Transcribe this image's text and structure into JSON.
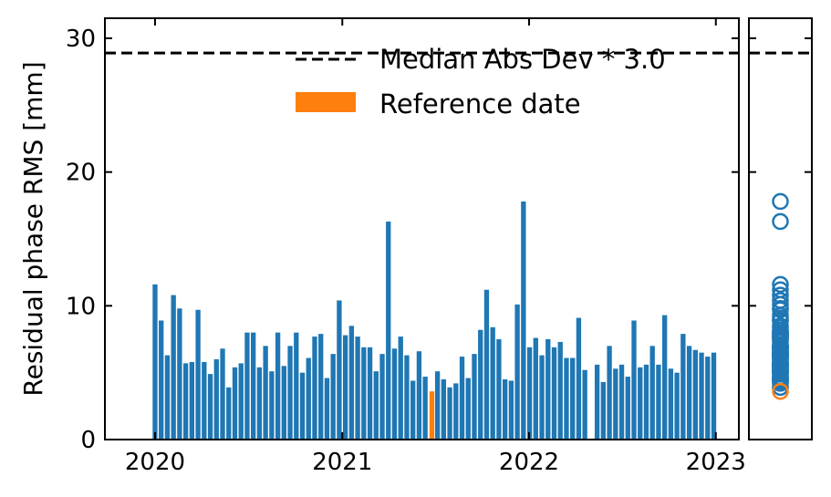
{
  "chart_data": [
    {
      "type": "bar",
      "ylabel": "Residual phase RMS [mm]",
      "ylim": [
        0,
        31.5
      ],
      "yticks": [
        0,
        10,
        20,
        30
      ],
      "xlim": [
        "2019-09-25",
        "2023-02-15"
      ],
      "xticks": [
        {
          "label": "2020",
          "date": "2020-01-01"
        },
        {
          "label": "2021",
          "date": "2021-01-01"
        },
        {
          "label": "2022",
          "date": "2022-01-01"
        },
        {
          "label": "2023",
          "date": "2023-01-01"
        }
      ],
      "threshold": 28.9,
      "reference_date": "2021-06-25",
      "reference_value": 3.6,
      "colors": {
        "bars": "#1f77b4",
        "reference": "#ff7f0e",
        "threshold": "#000000"
      },
      "legend": {
        "position": "top-right",
        "entries": [
          {
            "label": "Median Abs Dev * 3.0",
            "kind": "dashed-line"
          },
          {
            "label": "Reference date",
            "kind": "patch"
          }
        ]
      },
      "series": [
        {
          "dates": [
            "2020-01-01",
            "2020-01-13",
            "2020-01-25",
            "2020-02-06",
            "2020-02-18",
            "2020-03-01",
            "2020-03-13",
            "2020-03-25",
            "2020-04-06",
            "2020-04-18",
            "2020-04-30",
            "2020-05-12",
            "2020-05-24",
            "2020-06-05",
            "2020-06-17",
            "2020-06-29",
            "2020-07-11",
            "2020-07-23",
            "2020-08-04",
            "2020-08-16",
            "2020-08-28",
            "2020-09-09",
            "2020-09-21",
            "2020-10-03",
            "2020-10-15",
            "2020-10-27",
            "2020-11-08",
            "2020-11-20",
            "2020-12-02",
            "2020-12-14",
            "2020-12-26",
            "2021-01-07",
            "2021-01-19",
            "2021-01-31",
            "2021-02-12",
            "2021-02-24",
            "2021-03-08",
            "2021-03-20",
            "2021-04-01",
            "2021-04-13",
            "2021-04-25",
            "2021-05-07",
            "2021-05-19",
            "2021-05-31",
            "2021-06-12",
            "2021-07-06",
            "2021-07-18",
            "2021-07-30",
            "2021-08-11",
            "2021-08-23",
            "2021-09-04",
            "2021-09-16",
            "2021-09-28",
            "2021-10-10",
            "2021-10-22",
            "2021-11-03",
            "2021-11-15",
            "2021-11-27",
            "2021-12-09",
            "2021-12-21",
            "2022-01-02",
            "2022-01-14",
            "2022-01-26",
            "2022-02-07",
            "2022-02-19",
            "2022-03-03",
            "2022-03-15",
            "2022-03-27",
            "2022-04-08",
            "2022-04-20",
            "2022-05-14",
            "2022-05-26",
            "2022-06-07",
            "2022-06-19",
            "2022-07-01",
            "2022-07-13",
            "2022-07-25",
            "2022-08-06",
            "2022-08-18",
            "2022-08-30",
            "2022-09-11",
            "2022-09-23",
            "2022-10-05",
            "2022-10-17",
            "2022-10-29",
            "2022-11-10",
            "2022-11-22",
            "2022-12-04",
            "2022-12-16",
            "2022-12-28"
          ],
          "values": [
            11.6,
            8.9,
            6.3,
            10.8,
            9.8,
            5.7,
            5.8,
            9.7,
            5.8,
            4.9,
            6.0,
            6.8,
            3.9,
            5.4,
            5.7,
            8.0,
            8.0,
            5.4,
            7.0,
            5.1,
            8.0,
            5.5,
            7.0,
            8.0,
            5.0,
            6.1,
            7.7,
            7.9,
            4.6,
            6.4,
            10.4,
            7.8,
            8.5,
            7.7,
            6.9,
            6.9,
            5.1,
            6.4,
            16.3,
            6.8,
            7.7,
            6.3,
            4.4,
            6.6,
            4.7,
            5.1,
            4.5,
            3.9,
            4.2,
            6.2,
            4.6,
            6.4,
            8.2,
            11.2,
            8.4,
            7.5,
            4.5,
            4.4,
            10.1,
            17.8,
            6.9,
            7.6,
            6.3,
            7.5,
            6.9,
            7.3,
            6.1,
            6.1,
            9.1,
            5.2,
            5.6,
            4.3,
            7.0,
            5.3,
            5.6,
            4.7,
            8.9,
            5.4,
            5.6,
            7.0,
            5.6,
            9.3,
            5.3,
            5.0,
            7.9,
            7.0,
            6.7,
            6.5,
            6.2,
            6.5
          ]
        }
      ]
    },
    {
      "type": "scatter",
      "ylim": [
        0,
        31.5
      ],
      "threshold": 28.9,
      "reference_value": 3.6,
      "colors": {
        "points": "#1f77b4",
        "reference": "#ff7f0e"
      }
    }
  ]
}
